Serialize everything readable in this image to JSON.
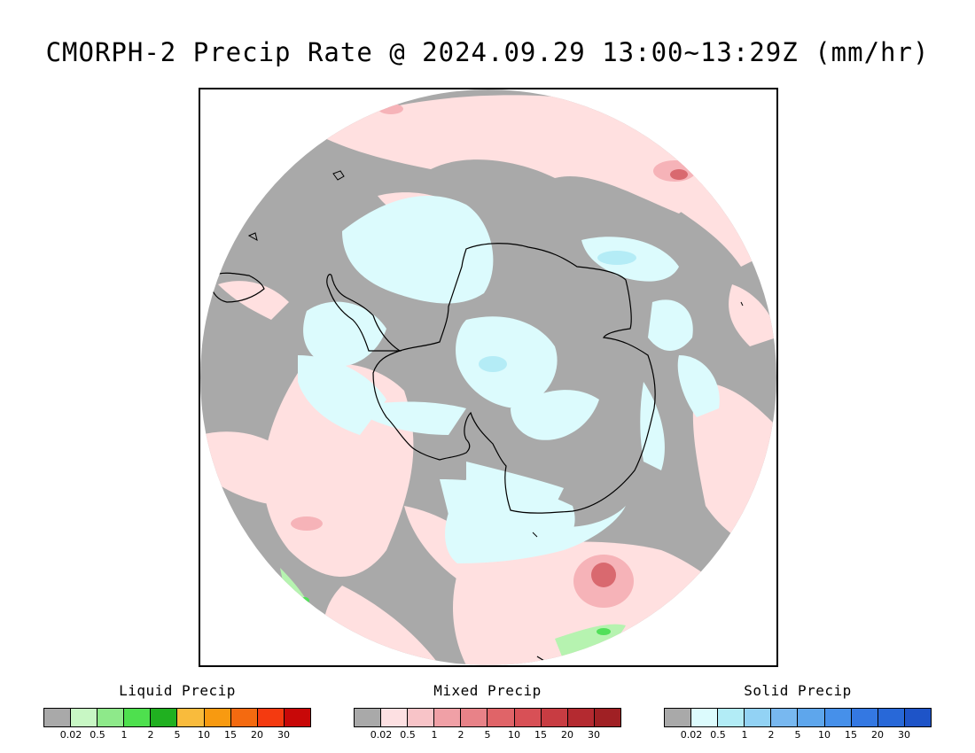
{
  "title": "CMORPH-2 Precip Rate @ 2024.09.29 13:00~13:29Z (mm/hr)",
  "map": {
    "projection": "south polar stereographic",
    "colors": {
      "no_precip": "#a9a9a9",
      "mixed_light": "#ffe0e0",
      "mixed_mid": "#f6b3b8",
      "mixed_heavy": "#d9696f",
      "solid_light": "#dcfbfd",
      "solid_mid": "#b4ecf6",
      "liquid_light": "#b6f3b0",
      "liquid_mid": "#52e05a",
      "coastline": "#000000"
    }
  },
  "legends": [
    {
      "name": "Liquid Precip",
      "colors": [
        "#a9a9a9",
        "#c8f7c4",
        "#8ee98a",
        "#4ee04e",
        "#20b020",
        "#f9bb3c",
        "#f89a10",
        "#f46a10",
        "#f43a10",
        "#c80808"
      ],
      "ticks": [
        "0.02",
        "0.5",
        "1",
        "2",
        "5",
        "10",
        "15",
        "20",
        "30"
      ]
    },
    {
      "name": "Mixed Precip",
      "colors": [
        "#a9a9a9",
        "#fde0e2",
        "#f8c4c8",
        "#f0a0a6",
        "#e88288",
        "#e06468",
        "#d85056",
        "#c83c42",
        "#b42a30",
        "#a02024"
      ],
      "ticks": [
        "0.02",
        "0.5",
        "1",
        "2",
        "5",
        "10",
        "15",
        "20",
        "30"
      ]
    },
    {
      "name": "Solid Precip",
      "colors": [
        "#a9a9a9",
        "#dcfbfd",
        "#b2ecf6",
        "#92d2f4",
        "#78b8f0",
        "#5ea6ec",
        "#4690ea",
        "#3478e2",
        "#2868d8",
        "#1e54c8"
      ],
      "ticks": [
        "0.02",
        "0.5",
        "1",
        "2",
        "5",
        "10",
        "15",
        "20",
        "30"
      ]
    }
  ]
}
